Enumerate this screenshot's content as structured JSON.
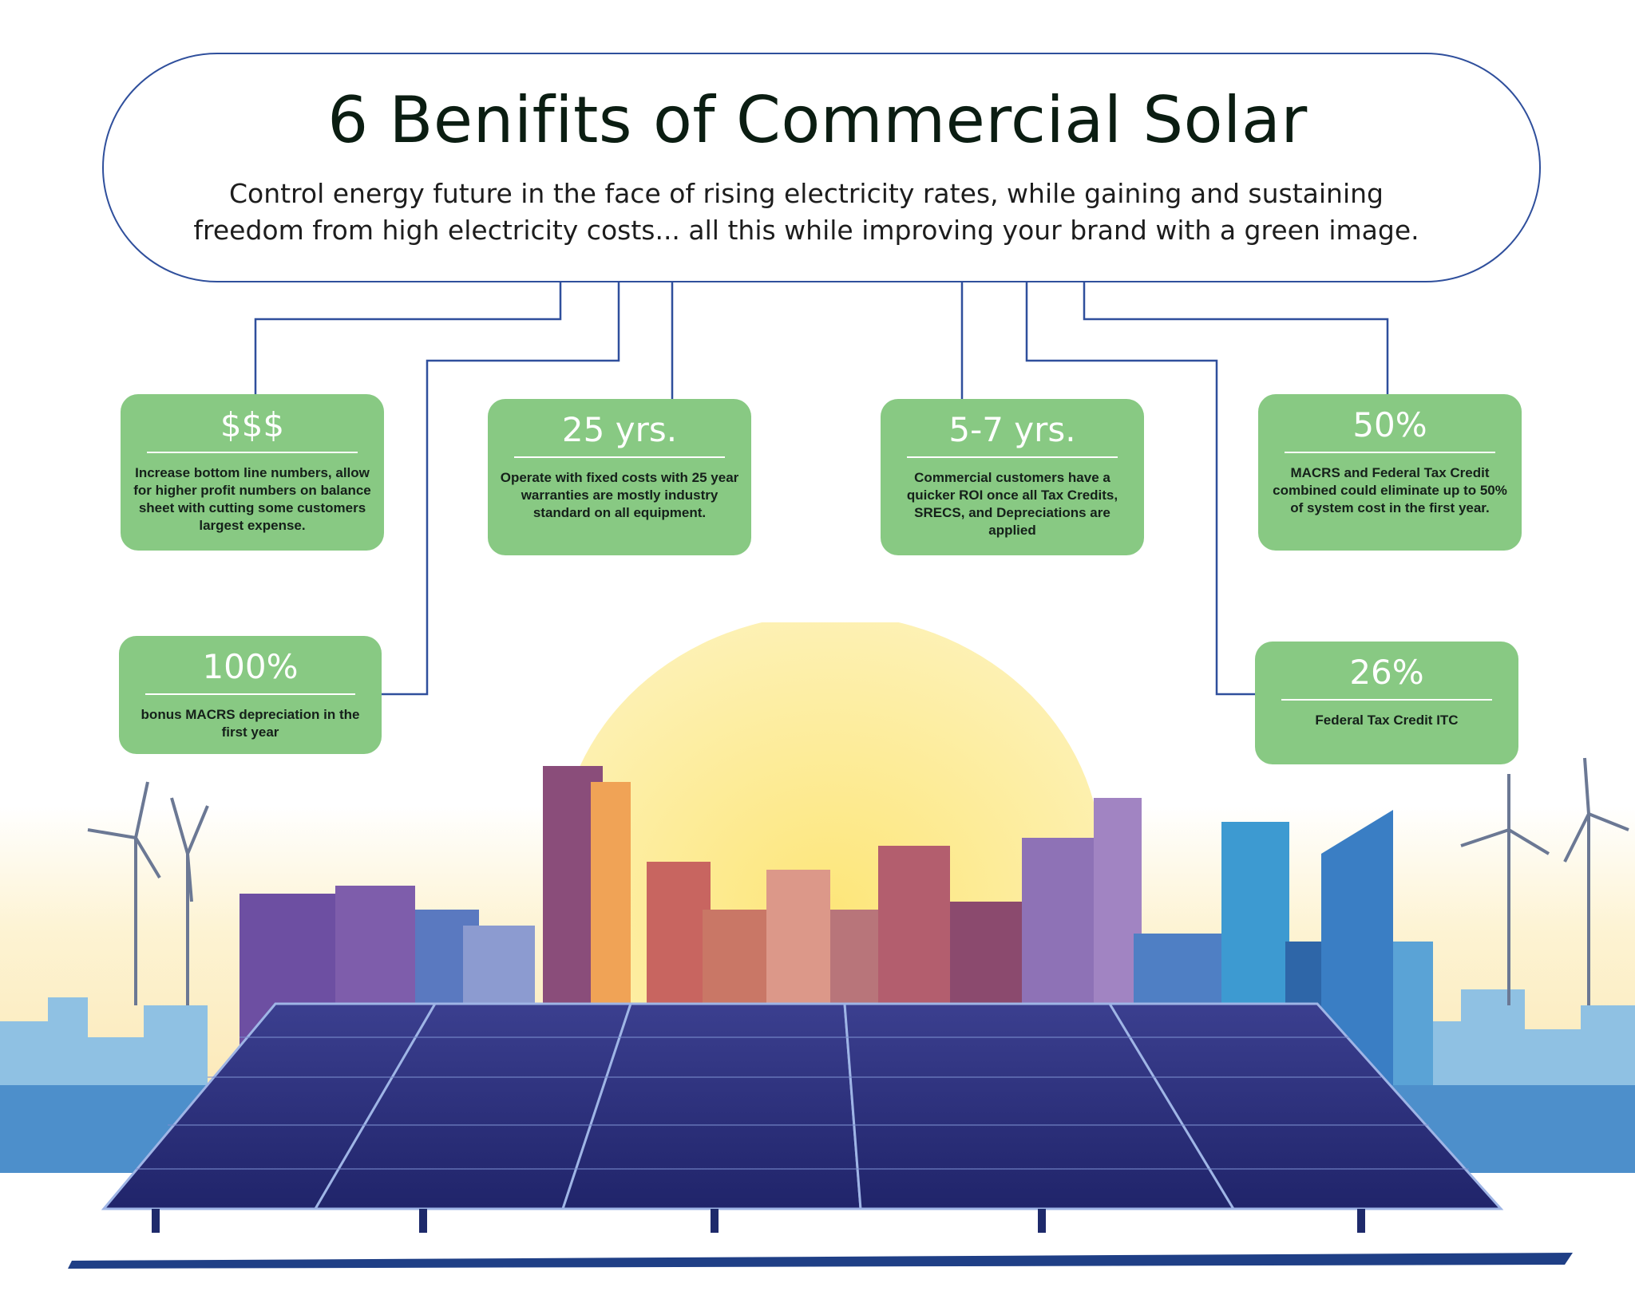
{
  "header": {
    "title": "6 Benifits of Commercial Solar",
    "subtitle": "Control energy future in the face of rising electricity rates, while gaining and sustaining freedom from high electricity costs... all this while improving your brand with a green image."
  },
  "benefits": [
    {
      "stat": "$$$",
      "text": "Increase bottom line numbers, allow for higher profit numbers on balance sheet with cutting some customers largest expense."
    },
    {
      "stat": "25 yrs.",
      "text": "Operate with fixed costs with 25 year warranties are mostly industry standard on all equipment."
    },
    {
      "stat": "5-7 yrs.",
      "text": "Commercial customers have a quicker ROI once all Tax Credits, SRECS, and Depreciations are applied"
    },
    {
      "stat": "50%",
      "text": "MACRS and Federal Tax Credit combined could eliminate up to 50% of system cost in the first year."
    },
    {
      "stat": "100%",
      "text": "bonus MACRS depreciation in the first year"
    },
    {
      "stat": "26%",
      "text": "Federal Tax Credit ITC"
    }
  ],
  "colors": {
    "card": "#88c983",
    "connector": "#2f4f9c",
    "sun": "#fbe98c",
    "panel": "#2b2f7a"
  },
  "illustration": {
    "subject": "city skyline at sunrise with wind turbines and rooftop solar panel array"
  }
}
